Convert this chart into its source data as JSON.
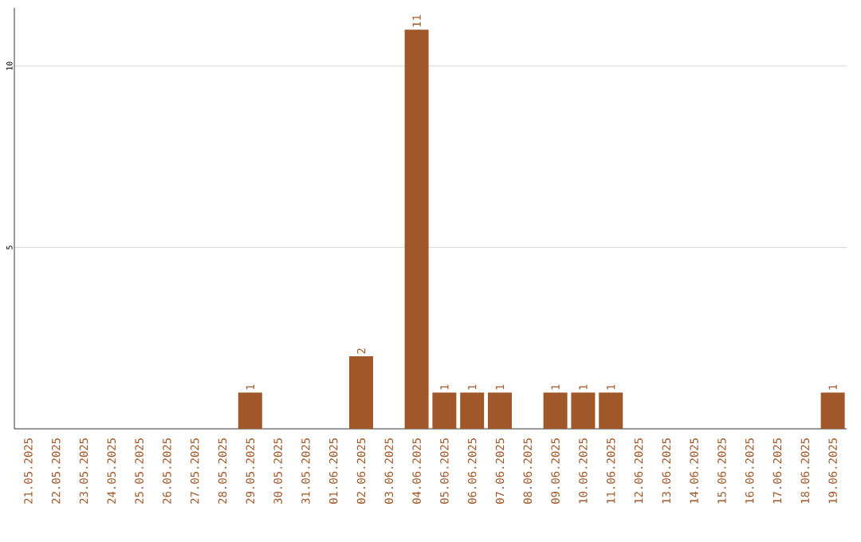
{
  "chart_data": {
    "type": "bar",
    "categories": [
      "21.05.2025",
      "22.05.2025",
      "23.05.2025",
      "24.05.2025",
      "25.05.2025",
      "26.05.2025",
      "27.05.2025",
      "28.05.2025",
      "29.05.2025",
      "30.05.2025",
      "31.05.2025",
      "01.06.2025",
      "02.06.2025",
      "03.06.2025",
      "04.06.2025",
      "05.06.2025",
      "06.06.2025",
      "07.06.2025",
      "08.06.2025",
      "09.06.2025",
      "10.06.2025",
      "11.06.2025",
      "12.06.2025",
      "13.06.2025",
      "14.06.2025",
      "15.06.2025",
      "16.06.2025",
      "17.06.2025",
      "18.06.2025",
      "19.06.2025"
    ],
    "values": [
      0,
      0,
      0,
      0,
      0,
      0,
      0,
      0,
      1,
      0,
      0,
      0,
      2,
      0,
      11,
      1,
      1,
      1,
      0,
      1,
      1,
      1,
      0,
      0,
      0,
      0,
      0,
      0,
      0,
      1
    ],
    "value_labels": [
      null,
      null,
      null,
      null,
      null,
      null,
      null,
      null,
      "1",
      null,
      null,
      null,
      "2",
      null,
      "11",
      "1",
      "1",
      "1",
      null,
      "1",
      "1",
      "1",
      null,
      null,
      null,
      null,
      null,
      null,
      null,
      "1"
    ],
    "color": "#a0582a",
    "ylim": [
      0,
      11.6
    ],
    "yticks": [
      5,
      10
    ],
    "grid": "y"
  }
}
